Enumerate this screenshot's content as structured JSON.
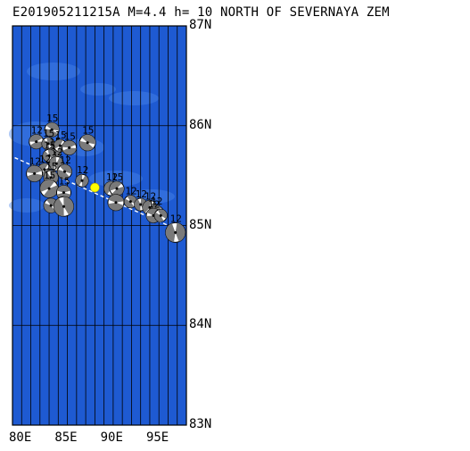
{
  "header": {
    "title": "E201905211215A M=4.4 h= 10 NORTH OF SEVERNAYA ZEM"
  },
  "map": {
    "lat_range": [
      83,
      87
    ],
    "lon_range": [
      80,
      99
    ],
    "lat_labels": [
      "87N",
      "86N",
      "85N",
      "84N",
      "83N"
    ],
    "lon_labels": [
      "80E",
      "85E",
      "90E",
      "95E"
    ],
    "colors": {
      "ocean": "#1e5ad2",
      "land": "#4a86e8",
      "grid": "#000000",
      "event": "#ffff00",
      "path": "#ffffff"
    },
    "event": {
      "lon": 89.0,
      "lat": 85.38
    },
    "path": [
      {
        "lon": 79.0,
        "lat": 85.73
      },
      {
        "lon": 99.0,
        "lat": 84.92
      }
    ],
    "mechanisms": [
      {
        "lon": 82.6,
        "lat": 85.84,
        "label": "12",
        "r": 8
      },
      {
        "lon": 84.3,
        "lat": 85.96,
        "label": "15",
        "r": 8
      },
      {
        "lon": 83.9,
        "lat": 85.82,
        "label": "15",
        "r": 7
      },
      {
        "lon": 84.6,
        "lat": 85.73,
        "label": "15",
        "r": 7
      },
      {
        "lon": 85.2,
        "lat": 85.8,
        "label": "15",
        "r": 7
      },
      {
        "lon": 86.2,
        "lat": 85.78,
        "label": "15",
        "r": 8
      },
      {
        "lon": 88.2,
        "lat": 85.83,
        "label": "15",
        "r": 9
      },
      {
        "lon": 84.0,
        "lat": 85.7,
        "label": "15",
        "r": 7
      },
      {
        "lon": 84.8,
        "lat": 85.62,
        "label": "12",
        "r": 8
      },
      {
        "lon": 83.5,
        "lat": 85.56,
        "label": "12",
        "r": 7
      },
      {
        "lon": 82.4,
        "lat": 85.52,
        "label": "12",
        "r": 9
      },
      {
        "lon": 85.7,
        "lat": 85.54,
        "label": "12",
        "r": 8
      },
      {
        "lon": 84.2,
        "lat": 85.48,
        "label": "15",
        "r": 8
      },
      {
        "lon": 87.6,
        "lat": 85.45,
        "label": "12",
        "r": 7
      },
      {
        "lon": 84.0,
        "lat": 85.37,
        "label": "15",
        "r": 10
      },
      {
        "lon": 85.6,
        "lat": 85.33,
        "label": "15",
        "r": 8
      },
      {
        "lon": 84.2,
        "lat": 85.2,
        "label": "",
        "r": 8
      },
      {
        "lon": 85.6,
        "lat": 85.19,
        "label": "",
        "r": 11
      },
      {
        "lon": 90.8,
        "lat": 85.37,
        "label": "12",
        "r": 8
      },
      {
        "lon": 91.4,
        "lat": 85.37,
        "label": "15",
        "r": 8
      },
      {
        "lon": 91.3,
        "lat": 85.23,
        "label": "",
        "r": 9
      },
      {
        "lon": 92.9,
        "lat": 85.24,
        "label": "12",
        "r": 7
      },
      {
        "lon": 94.0,
        "lat": 85.21,
        "label": "12",
        "r": 7
      },
      {
        "lon": 95.0,
        "lat": 85.18,
        "label": "12",
        "r": 8
      },
      {
        "lon": 95.7,
        "lat": 85.13,
        "label": "12",
        "r": 8
      },
      {
        "lon": 95.4,
        "lat": 85.1,
        "label": "12",
        "r": 8
      },
      {
        "lon": 96.2,
        "lat": 85.1,
        "label": "",
        "r": 7
      },
      {
        "lon": 97.8,
        "lat": 84.93,
        "label": "12",
        "r": 11
      }
    ]
  }
}
